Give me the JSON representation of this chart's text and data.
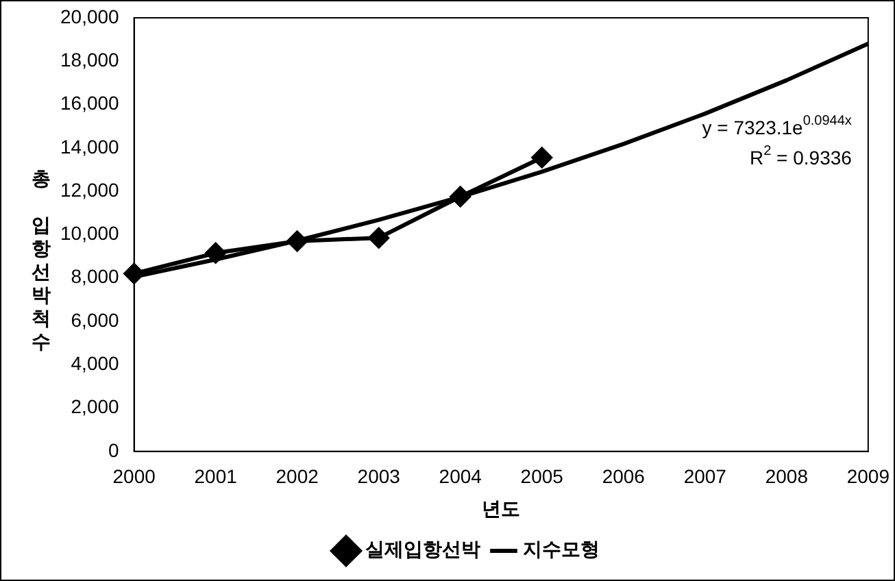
{
  "chart_data": {
    "type": "line",
    "xlabel": "년도",
    "ylabel": "총 입항선박척수",
    "categories": [
      "2000",
      "2001",
      "2002",
      "2003",
      "2004",
      "2005",
      "2006",
      "2007",
      "2008",
      "2009"
    ],
    "series": [
      {
        "name": "실제입항선박",
        "color": "#000000",
        "marker": "diamond",
        "values": [
          8200,
          9150,
          9700,
          9850,
          11750,
          13550,
          null,
          null,
          null,
          null
        ]
      },
      {
        "name": "지수모형",
        "color": "#000000",
        "marker": "none",
        "values": [
          8050,
          8850,
          9720,
          10680,
          11740,
          12900,
          14180,
          15580,
          17120,
          18810
        ]
      }
    ],
    "ylim": [
      0,
      20000
    ],
    "yticks": [
      0,
      {
        "value": 2000,
        "label": "2,000"
      },
      {
        "value": 4000,
        "label": "4,000"
      },
      {
        "value": 6000,
        "label": "6,000"
      },
      {
        "value": 8000,
        "label": "8,000"
      },
      {
        "value": 10000,
        "label": "10,000"
      },
      {
        "value": 12000,
        "label": "12,000"
      },
      {
        "value": 14000,
        "label": "14,000"
      },
      {
        "value": 16000,
        "label": "16,000"
      },
      {
        "value": 18000,
        "label": "18,000"
      },
      {
        "value": 20000,
        "label": "20,000"
      }
    ],
    "grid": false,
    "legend": "bottom",
    "annotations": [
      "y = 7323.1e$^{0.0944x}$",
      "R$^{2}$ = 0.9336"
    ]
  }
}
